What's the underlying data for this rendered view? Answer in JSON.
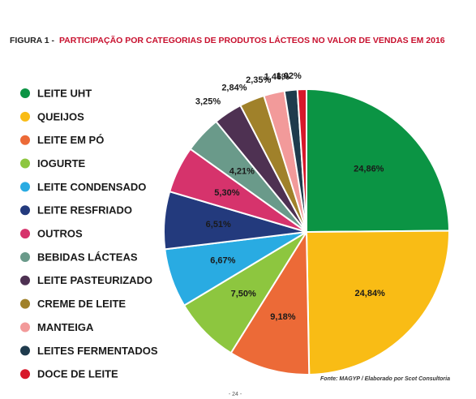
{
  "chart_data": {
    "type": "pie",
    "figure_label": "FIGURA 1 -",
    "title": "PARTICIPAÇÃO POR CATEGORIAS DE PRODUTOS LÁCTEOS NO VALOR DE VENDAS EM 2016",
    "categories": [
      "LEITE UHT",
      "QUEIJOS",
      "LEITE EM PÓ",
      "IOGURTE",
      "LEITE CONDENSADO",
      "LEITE RESFRIADO",
      "OUTROS",
      "BEBIDAS LÁCTEAS",
      "LEITE PASTEURIZADO",
      "CREME DE LEITE",
      "MANTEIGA",
      "LEITES FERMENTADOS",
      "DOCE DE LEITE"
    ],
    "values": [
      24.86,
      24.84,
      9.18,
      7.5,
      6.67,
      6.51,
      5.3,
      4.21,
      3.25,
      2.84,
      2.35,
      1.46,
      1.02
    ],
    "value_labels": [
      "24,86%",
      "24,84%",
      "9,18%",
      "7,50%",
      "6,67%",
      "6,51%",
      "5,30%",
      "4,21%",
      "3,25%",
      "2,84%",
      "2,35%",
      "1,46%",
      "1,02%"
    ],
    "colors": [
      "#0b9444",
      "#f9bc15",
      "#ec6a37",
      "#8dc63f",
      "#29abe2",
      "#233a7d",
      "#d6336c",
      "#6a9a8a",
      "#4e3152",
      "#a0812a",
      "#f29a9a",
      "#1f3b4d",
      "#d7182a"
    ],
    "source": "Fonte: MAGYP / Elaborado por Scot Consultoria",
    "page_number": "- 24 -"
  }
}
